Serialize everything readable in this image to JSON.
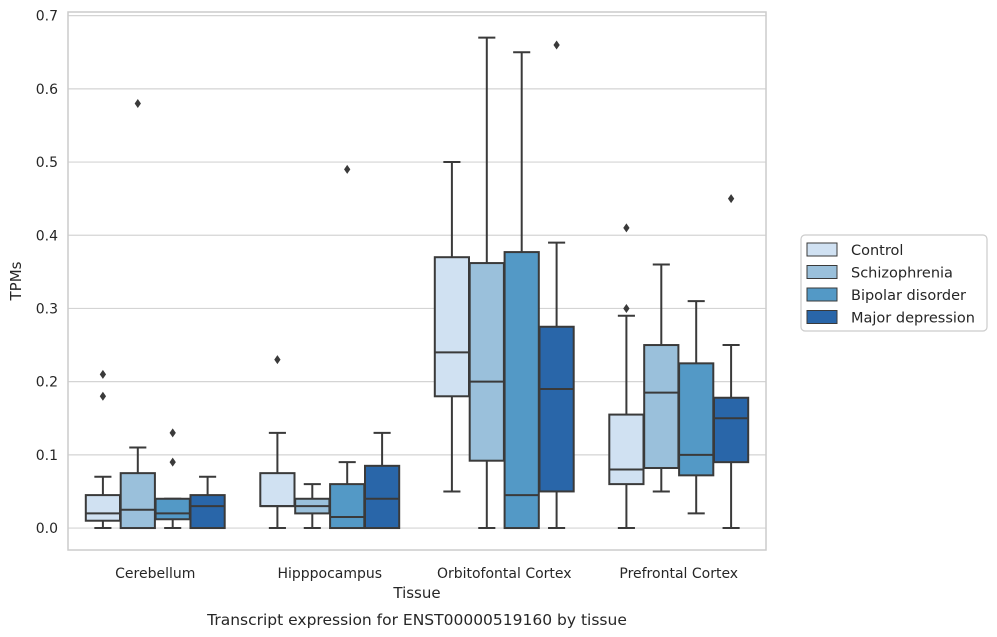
{
  "chart_data": {
    "type": "boxplot",
    "xlabel": "Tissue",
    "ylabel": "TPMs",
    "caption": "Transcript expression for ENST00000519160 by tissue",
    "ylim": [
      -0.03,
      0.705
    ],
    "yticks": [
      0.0,
      0.1,
      0.2,
      0.3,
      0.4,
      0.5,
      0.6,
      0.7
    ],
    "ytick_labels": [
      "0.0",
      "0.1",
      "0.2",
      "0.3",
      "0.4",
      "0.5",
      "0.6",
      "0.7"
    ],
    "grid": "horizontal",
    "legend_position": "right",
    "categories": [
      "Cerebellum",
      "Hipppocampus",
      "Orbitofontal Cortex",
      "Prefrontal Cortex"
    ],
    "series": [
      {
        "name": "Control",
        "color": "#d0e1f2",
        "boxes": [
          {
            "whisker_low": 0.0,
            "q1": 0.01,
            "median": 0.02,
            "q3": 0.045,
            "whisker_high": 0.07,
            "outliers": [
              0.18,
              0.21
            ]
          },
          {
            "whisker_low": 0.0,
            "q1": 0.03,
            "median": 0.03,
            "q3": 0.075,
            "whisker_high": 0.13,
            "outliers": [
              0.23
            ]
          },
          {
            "whisker_low": 0.05,
            "q1": 0.18,
            "median": 0.24,
            "q3": 0.37,
            "whisker_high": 0.5,
            "outliers": []
          },
          {
            "whisker_low": 0.0,
            "q1": 0.06,
            "median": 0.08,
            "q3": 0.155,
            "whisker_high": 0.29,
            "outliers": [
              0.3,
              0.41
            ]
          }
        ]
      },
      {
        "name": "Schizophrenia",
        "color": "#9ac0db",
        "boxes": [
          {
            "whisker_low": 0.0,
            "q1": 0.0,
            "median": 0.025,
            "q3": 0.075,
            "whisker_high": 0.11,
            "outliers": [
              0.58
            ]
          },
          {
            "whisker_low": 0.0,
            "q1": 0.02,
            "median": 0.03,
            "q3": 0.04,
            "whisker_high": 0.06,
            "outliers": []
          },
          {
            "whisker_low": 0.0,
            "q1": 0.092,
            "median": 0.2,
            "q3": 0.362,
            "whisker_high": 0.67,
            "outliers": []
          },
          {
            "whisker_low": 0.05,
            "q1": 0.082,
            "median": 0.185,
            "q3": 0.25,
            "whisker_high": 0.36,
            "outliers": []
          }
        ]
      },
      {
        "name": "Bipolar disorder",
        "color": "#5399c6",
        "boxes": [
          {
            "whisker_low": 0.0,
            "q1": 0.012,
            "median": 0.02,
            "q3": 0.04,
            "whisker_high": 0.04,
            "outliers": [
              0.09,
              0.13
            ]
          },
          {
            "whisker_low": 0.0,
            "q1": 0.0,
            "median": 0.015,
            "q3": 0.06,
            "whisker_high": 0.09,
            "outliers": [
              0.49
            ]
          },
          {
            "whisker_low": 0.0,
            "q1": 0.0,
            "median": 0.045,
            "q3": 0.377,
            "whisker_high": 0.65,
            "outliers": []
          },
          {
            "whisker_low": 0.02,
            "q1": 0.072,
            "median": 0.1,
            "q3": 0.225,
            "whisker_high": 0.31,
            "outliers": []
          }
        ]
      },
      {
        "name": "Major depression",
        "color": "#2966a9",
        "boxes": [
          {
            "whisker_low": 0.0,
            "q1": 0.0,
            "median": 0.03,
            "q3": 0.045,
            "whisker_high": 0.07,
            "outliers": []
          },
          {
            "whisker_low": 0.0,
            "q1": 0.0,
            "median": 0.04,
            "q3": 0.085,
            "whisker_high": 0.13,
            "outliers": []
          },
          {
            "whisker_low": 0.0,
            "q1": 0.05,
            "median": 0.19,
            "q3": 0.275,
            "whisker_high": 0.39,
            "outliers": [
              0.66
            ]
          },
          {
            "whisker_low": 0.0,
            "q1": 0.09,
            "median": 0.15,
            "q3": 0.178,
            "whisker_high": 0.25,
            "outliers": [
              0.45
            ]
          }
        ]
      }
    ]
  }
}
